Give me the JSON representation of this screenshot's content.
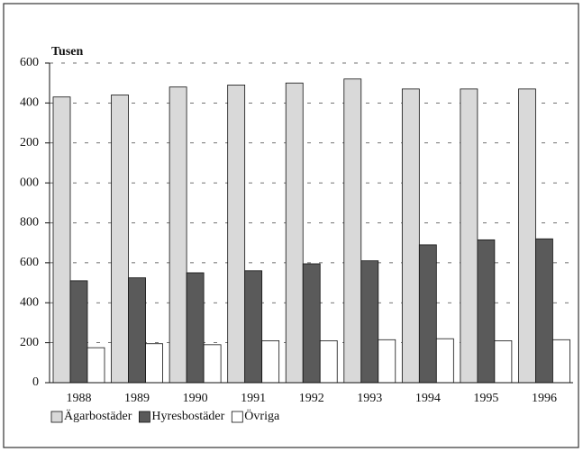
{
  "chart_data": {
    "type": "bar",
    "y_label": "Tusen",
    "categories": [
      "1988",
      "1989",
      "1990",
      "1991",
      "1992",
      "1993",
      "1994",
      "1995",
      "1996"
    ],
    "series": [
      {
        "name": "Ägarbostäder",
        "color": "#d9d9d9",
        "values": [
          1430,
          1440,
          1480,
          1490,
          1500,
          1520,
          1470,
          1470,
          1470
        ]
      },
      {
        "name": "Hyresbostäder",
        "color": "#5a5a5a",
        "values": [
          510,
          525,
          550,
          560,
          595,
          610,
          690,
          715,
          720
        ]
      },
      {
        "name": "Övriga",
        "color": "#ffffff",
        "values": [
          175,
          195,
          190,
          210,
          210,
          215,
          220,
          210,
          215
        ]
      }
    ],
    "ylim": [
      0,
      1600
    ],
    "yticks": [
      0,
      200,
      400,
      600,
      800,
      {
        "value": 1000,
        "label": "000"
      },
      {
        "value": 1200,
        "label": "200"
      },
      {
        "value": 1400,
        "label": "400"
      },
      {
        "value": 1600,
        "label": "600"
      }
    ],
    "grid": true,
    "legend": "bottom"
  }
}
